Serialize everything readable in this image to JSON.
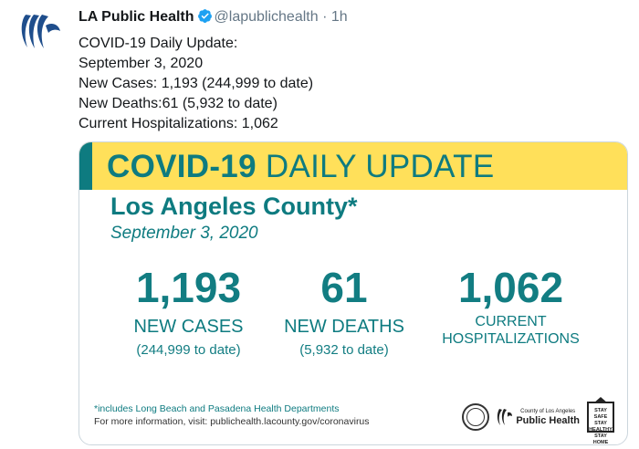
{
  "tweet": {
    "display_name": "LA Public Health",
    "handle": "@lapublichealth",
    "separator": "·",
    "time": "1h",
    "lines": [
      "COVID-19 Daily Update:",
      "September 3, 2020",
      "New Cases: 1,193 (244,999 to date)",
      "New Deaths:61 (5,932 to date)",
      "Current Hospitalizations: 1,062"
    ]
  },
  "card": {
    "banner_bold": "COVID-19",
    "banner_light": "DAILY UPDATE",
    "county": "Los Angeles County*",
    "date": "September 3, 2020",
    "stats": [
      {
        "number": "1,193",
        "label": "NEW CASES",
        "sub": "(244,999 to date)"
      },
      {
        "number": "61",
        "label": "NEW DEATHS",
        "sub": "(5,932 to date)"
      },
      {
        "number": "1,062",
        "label_line1": "CURRENT",
        "label_line2": "HOSPITALIZATIONS"
      }
    ],
    "footnote": "*includes Long Beach and Pasadena Health Departments",
    "more_info": "For more information, visit: publichealth.lacounty.gov/coronavirus",
    "logos": {
      "ph_small_1": "County of Los Angeles",
      "ph_big": "Public Health",
      "safe_1": "STAY SAFE",
      "safe_2": "STAY HEALTHY",
      "safe_3": "STAY HOME"
    }
  },
  "colors": {
    "teal": "#0e7b80",
    "yellow": "#ffe05a",
    "verified": "#1da1f2",
    "muted": "#657786"
  }
}
